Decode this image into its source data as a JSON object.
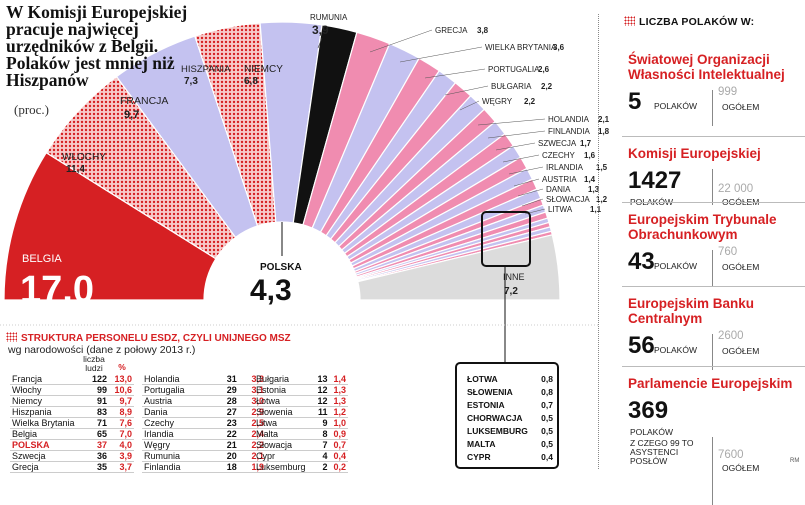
{
  "title": "W Komisji Europejskiej pracuje najwięcej urzędników z Belgii. Polaków jest mniej niż Hiszpanów",
  "subtitle": "(proc.)",
  "colors": {
    "red": "#d62023",
    "lavender": "#c4c2f0",
    "pink": "#f08cb0",
    "black": "#111111",
    "gray": "#dcdcdc"
  },
  "chart_data": [
    {
      "type": "pie",
      "title": "W Komisji Europejskiej pracuje najwięcej urzędników z Belgii. Polaków jest mniej niż Hiszpanów",
      "unit": "(proc.)",
      "slices": [
        {
          "label": "BELGIA",
          "value": "17,0",
          "v": 17.0
        },
        {
          "label": "WŁOCHY",
          "value": "11,4",
          "v": 11.4
        },
        {
          "label": "FRANCJA",
          "value": "9,7",
          "v": 9.7
        },
        {
          "label": "HISZPANIA",
          "value": "7,3",
          "v": 7.3
        },
        {
          "label": "NIEMCY",
          "value": "6,8",
          "v": 6.8
        },
        {
          "label": "RUMUNIA",
          "value": "3,9",
          "v": 3.9
        },
        {
          "label": "GRECJA",
          "value": "3,8",
          "v": 3.8
        },
        {
          "label": "WIELKA BRYTANIA",
          "value": "3,6",
          "v": 3.6
        },
        {
          "label": "PORTUGALIA",
          "value": "2,6",
          "v": 2.6
        },
        {
          "label": "BUŁGARIA",
          "value": "2,2",
          "v": 2.2
        },
        {
          "label": "WĘGRY",
          "value": "2,2",
          "v": 2.2
        },
        {
          "label": "HOLANDIA",
          "value": "2,1",
          "v": 2.1
        },
        {
          "label": "FINLANDIA",
          "value": "1,8",
          "v": 1.8
        },
        {
          "label": "SZWECJA",
          "value": "1,7",
          "v": 1.7
        },
        {
          "label": "CZECHY",
          "value": "1,6",
          "v": 1.6
        },
        {
          "label": "IRLANDIA",
          "value": "1,5",
          "v": 1.5
        },
        {
          "label": "AUSTRIA",
          "value": "1,4",
          "v": 1.4
        },
        {
          "label": "DANIA",
          "value": "1,3",
          "v": 1.3
        },
        {
          "label": "SŁOWACJA",
          "value": "1,2",
          "v": 1.2
        },
        {
          "label": "LITWA",
          "value": "1,1",
          "v": 1.1
        },
        {
          "label": "ŁOTWA",
          "value": "0,8",
          "v": 0.8
        },
        {
          "label": "SŁOWENIA",
          "value": "0,8",
          "v": 0.8
        },
        {
          "label": "ESTONIA",
          "value": "0,7",
          "v": 0.7
        },
        {
          "label": "CHORWACJA",
          "value": "0,5",
          "v": 0.5
        },
        {
          "label": "LUKSEMBURG",
          "value": "0,5",
          "v": 0.5
        },
        {
          "label": "MALTA",
          "value": "0,5",
          "v": 0.5
        },
        {
          "label": "CYPR",
          "value": "0,4",
          "v": 0.4
        },
        {
          "label": "INNE",
          "value": "7,2",
          "v": 7.2
        }
      ],
      "center": {
        "label": "POLSKA",
        "value": "4,3"
      }
    },
    {
      "type": "table",
      "title": "STRUKTURA PERSONELU ESDZ, CZYLI UNIJNEGO MSZ",
      "subtitle": "wg narodowości (dane z połowy 2013 r.)",
      "columns": [
        "liczba ludzi",
        "%"
      ],
      "rows": [
        [
          "Francja",
          "122",
          "13,0"
        ],
        [
          "Włochy",
          "99",
          "10,6"
        ],
        [
          "Niemcy",
          "91",
          "9,7"
        ],
        [
          "Hiszpania",
          "83",
          "8,9"
        ],
        [
          "Wielka Brytania",
          "71",
          "7,6"
        ],
        [
          "Belgia",
          "65",
          "7,0"
        ],
        [
          "POLSKA",
          "37",
          "4,0"
        ],
        [
          "Szwecja",
          "36",
          "3,9"
        ],
        [
          "Grecja",
          "35",
          "3,7"
        ],
        [
          "Holandia",
          "31",
          "3,3"
        ],
        [
          "Portugalia",
          "29",
          "3,1"
        ],
        [
          "Austria",
          "28",
          "3,0"
        ],
        [
          "Dania",
          "27",
          "2,9"
        ],
        [
          "Czechy",
          "23",
          "2,5"
        ],
        [
          "Irlandia",
          "22",
          "2,4"
        ],
        [
          "Węgry",
          "21",
          "2,2"
        ],
        [
          "Rumunia",
          "20",
          "2,1"
        ],
        [
          "Finlandia",
          "18",
          "1,9"
        ],
        [
          "Bułgaria",
          "13",
          "1,4"
        ],
        [
          "Estonia",
          "12",
          "1,3"
        ],
        [
          "Łotwa",
          "12",
          "1,3"
        ],
        [
          "Słowenia",
          "11",
          "1,2"
        ],
        [
          "Litwa",
          "9",
          "1,0"
        ],
        [
          "Malta",
          "8",
          "0,9"
        ],
        [
          "Słowacja",
          "7",
          "0,7"
        ],
        [
          "Cypr",
          "4",
          "0,4"
        ],
        [
          "Luksemburg",
          "2",
          "0,2"
        ]
      ]
    }
  ],
  "right_panel": {
    "header": "LICZBA POLAKÓW W:",
    "orgs": [
      {
        "name": "Światowej Organizacji Własności Intelektualnej",
        "num": "5",
        "pl": "POLAKÓW",
        "total": "999",
        "og": "OGÓŁEM"
      },
      {
        "name": "Komisji Europejskiej",
        "num": "1427",
        "pl": "POLAKÓW",
        "total": "22 000",
        "og": "OGÓŁEM"
      },
      {
        "name": "Europejskim Trybunale Obrachunkowym",
        "num": "43",
        "pl": "POLAKÓW",
        "total": "760",
        "og": "OGÓŁEM"
      },
      {
        "name": "Europejskim Banku Centralnym",
        "num": "56",
        "pl": "POLAKÓW",
        "total": "2600",
        "og": "OGÓŁEM"
      },
      {
        "name": "Parlamencie Europejskim",
        "num": "369",
        "pl": "POLAKÓW",
        "extra": "Z CZEGO 99 TO ASYSTENCI POSŁÓW",
        "total": "7600",
        "og": "OGÓŁEM"
      }
    ]
  },
  "table_head": {
    "count": "liczba ludzi",
    "pct": "%"
  },
  "signature": "RM"
}
